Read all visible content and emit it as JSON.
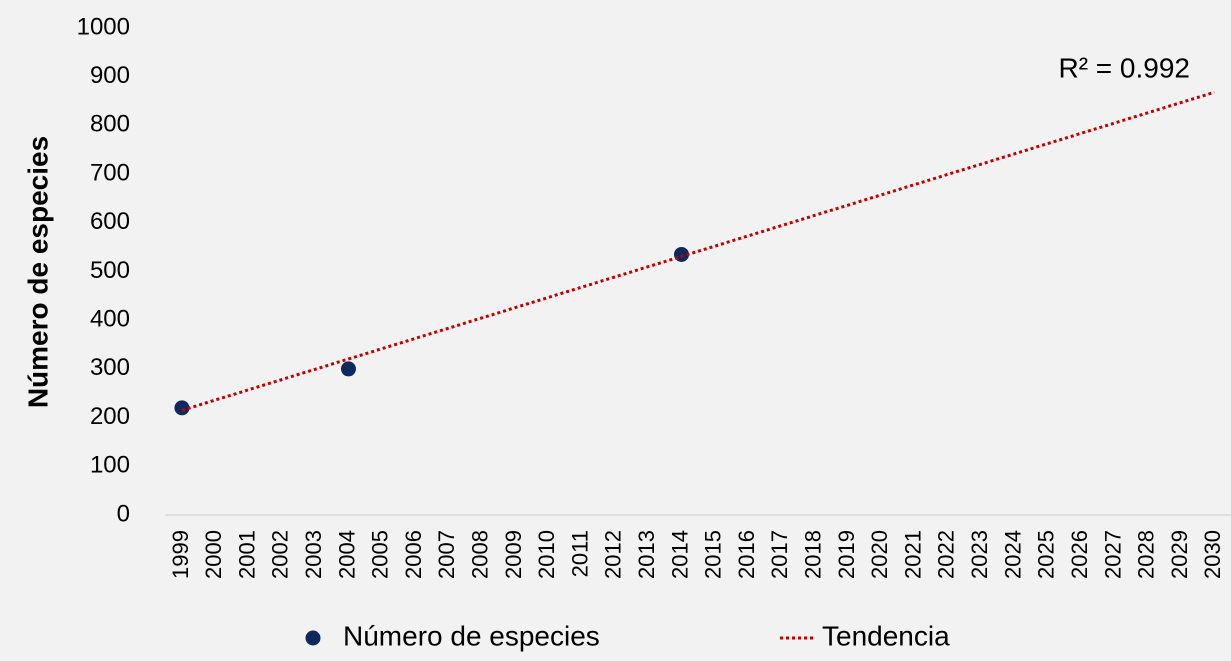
{
  "chart_data": {
    "type": "scatter",
    "y_label": "Número de especies",
    "annotation": "R² = 0.992",
    "xlim": [
      1998.5,
      2030.5
    ],
    "xticks": [
      1999,
      2000,
      2001,
      2002,
      2003,
      2004,
      2005,
      2006,
      2007,
      2008,
      2009,
      2010,
      2011,
      2012,
      2013,
      2014,
      2015,
      2016,
      2017,
      2018,
      2019,
      2020,
      2021,
      2022,
      2023,
      2024,
      2025,
      2026,
      2027,
      2028,
      2029,
      2030
    ],
    "ylim": [
      0,
      1000
    ],
    "yticks": [
      0,
      100,
      200,
      300,
      400,
      500,
      600,
      700,
      800,
      900,
      1000
    ],
    "series": [
      {
        "name": "Número de especies",
        "color": "#0e2a5c",
        "mode": "markers",
        "x": [
          1999,
          2004,
          2014
        ],
        "values": [
          220,
          300,
          535
        ]
      },
      {
        "name": "Tendencia",
        "color": "#c00000",
        "mode": "dotted-line",
        "x": [
          1999,
          2030
        ],
        "values": [
          215,
          868
        ]
      }
    ]
  }
}
